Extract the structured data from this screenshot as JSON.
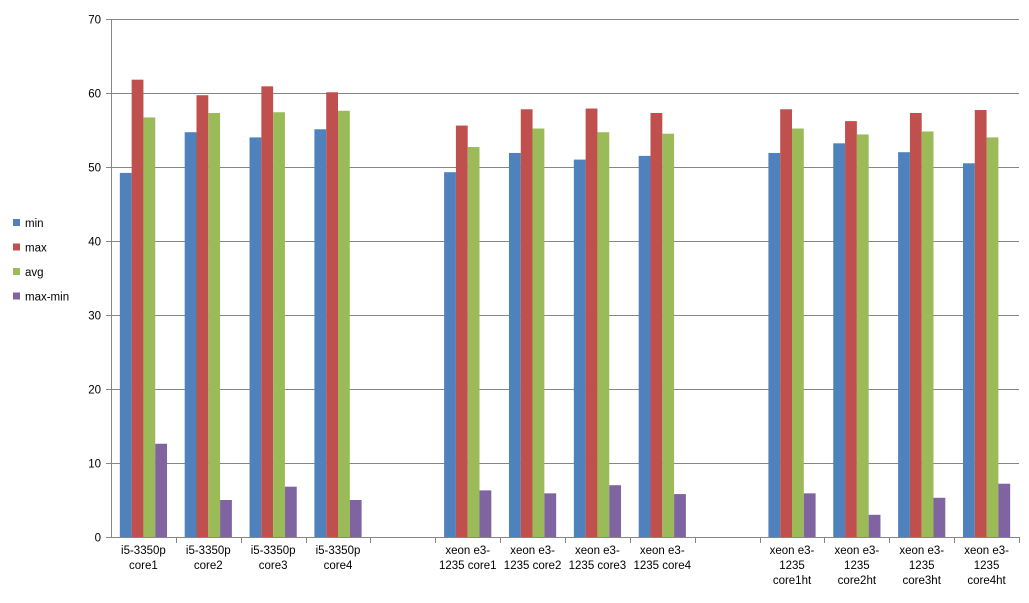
{
  "chart_data": {
    "type": "bar",
    "title": "",
    "xlabel": "",
    "ylabel": "",
    "ylim": [
      0,
      70
    ],
    "yticks": [
      0,
      10,
      20,
      30,
      40,
      50,
      60,
      70
    ],
    "grid": true,
    "legend_position": "left",
    "categories": [
      [
        "i5-3350p",
        "core1"
      ],
      [
        "i5-3350p",
        "core2"
      ],
      [
        "i5-3350p",
        "core3"
      ],
      [
        "i5-3350p",
        "core4"
      ],
      [],
      [
        "xeon e3-",
        "1235 core1"
      ],
      [
        "xeon e3-",
        "1235 core2"
      ],
      [
        "xeon e3-",
        "1235 core3"
      ],
      [
        "xeon e3-",
        "1235 core4"
      ],
      [],
      [
        "xeon e3-",
        "1235",
        "core1ht"
      ],
      [
        "xeon e3-",
        "1235",
        "core2ht"
      ],
      [
        "xeon e3-",
        "1235",
        "core3ht"
      ],
      [
        "xeon e3-",
        "1235",
        "core4ht"
      ]
    ],
    "series": [
      {
        "name": "min",
        "color": "#4F81BD",
        "values": [
          49.2,
          54.7,
          54.0,
          55.1,
          null,
          49.3,
          51.9,
          51.0,
          51.5,
          null,
          51.9,
          53.2,
          52.0,
          50.5
        ]
      },
      {
        "name": "max",
        "color": "#C0504D",
        "values": [
          61.8,
          59.7,
          60.9,
          60.1,
          null,
          55.6,
          57.8,
          57.9,
          57.3,
          null,
          57.8,
          56.2,
          57.3,
          57.7
        ]
      },
      {
        "name": "avg",
        "color": "#9BBB59",
        "values": [
          56.7,
          57.3,
          57.4,
          57.6,
          null,
          52.7,
          55.2,
          54.7,
          54.5,
          null,
          55.2,
          54.4,
          54.8,
          54.0
        ]
      },
      {
        "name": "max-min",
        "color": "#8064A2",
        "values": [
          12.6,
          5.0,
          6.8,
          5.0,
          null,
          6.3,
          5.9,
          7.0,
          5.8,
          null,
          5.9,
          3.0,
          5.3,
          7.2
        ]
      }
    ]
  }
}
